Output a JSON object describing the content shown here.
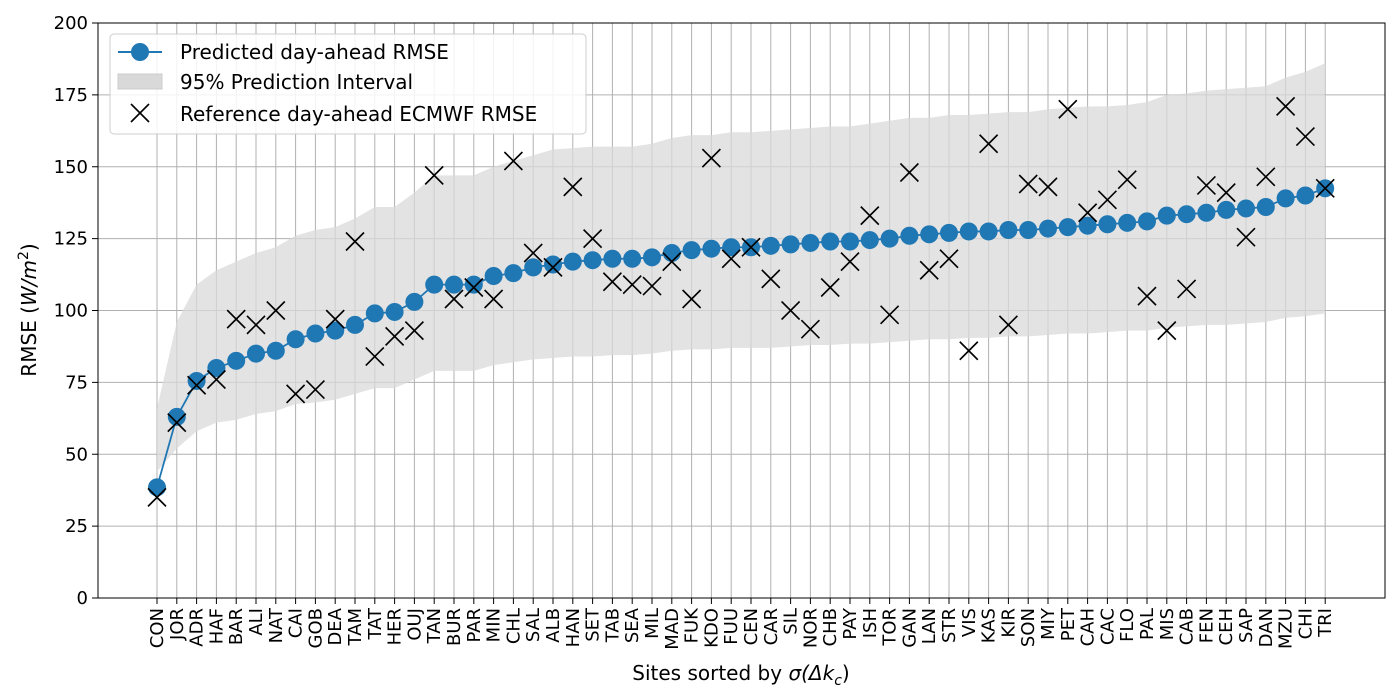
{
  "chart_data": {
    "type": "line",
    "title": "",
    "xlabel_main": "Sites sorted by ",
    "xlabel_symbol": "σ(Δk",
    "xlabel_sub": "c",
    "xlabel_close": ")",
    "ylabel_main": "RMSE (",
    "ylabel_unit": "W/m",
    "ylabel_sup": "2",
    "ylabel_close": ")",
    "ylim": [
      0,
      200
    ],
    "yticks": [
      0,
      25,
      50,
      75,
      100,
      125,
      150,
      175,
      200
    ],
    "grid": true,
    "legend_position": "top-left",
    "categories": [
      "CON",
      "JOR",
      "ADR",
      "HAF",
      "BAR",
      "ALI",
      "NAT",
      "CAI",
      "GOB",
      "DEA",
      "TAM",
      "TAT",
      "HER",
      "OUJ",
      "TAN",
      "BUR",
      "PAR",
      "MIN",
      "CHL",
      "SAL",
      "ALB",
      "HAN",
      "SET",
      "TAB",
      "SEA",
      "MIL",
      "MAD",
      "FUK",
      "KDO",
      "FUU",
      "CEN",
      "CAR",
      "SIL",
      "NOR",
      "CHB",
      "PAY",
      "ISH",
      "TOR",
      "GAN",
      "LAN",
      "STR",
      "VIS",
      "KAS",
      "KIR",
      "SON",
      "MIY",
      "PET",
      "CAH",
      "CAC",
      "FLO",
      "PAL",
      "MIS",
      "CAB",
      "FEN",
      "CEH",
      "SAP",
      "DAN",
      "MZU",
      "CHI",
      "TRI"
    ],
    "series": [
      {
        "name": "Predicted day-ahead RMSE",
        "kind": "line-marker",
        "color": "#1f77b4",
        "values": [
          38.5,
          63,
          75.5,
          80,
          82.5,
          85,
          86,
          90,
          92,
          93,
          95,
          99,
          99.5,
          103,
          109,
          109,
          109,
          112,
          113,
          115,
          116,
          117,
          117.5,
          118,
          118,
          118.5,
          120,
          121,
          121.5,
          122,
          122,
          122.5,
          123,
          123.5,
          124,
          124,
          124.5,
          125,
          126,
          126.5,
          127,
          127.5,
          127.5,
          128,
          128,
          128.5,
          129,
          129.5,
          130,
          130.5,
          131,
          133,
          133.5,
          134,
          135,
          135.5,
          136,
          139,
          140,
          142.5
        ]
      },
      {
        "name": "95% Prediction Interval",
        "kind": "band",
        "color": "#d9d9d9",
        "lower": [
          44,
          52,
          58,
          61,
          62,
          64,
          65,
          67.5,
          68,
          69,
          71,
          73,
          73,
          76,
          79,
          79,
          79,
          81,
          82,
          83,
          83.5,
          84,
          84,
          84.5,
          84.5,
          85,
          86,
          86.5,
          86.5,
          87,
          87,
          87,
          87.5,
          88,
          88,
          88.5,
          88.5,
          89,
          89.5,
          90,
          90,
          90.5,
          90.5,
          91,
          91,
          91.5,
          92,
          92,
          92.5,
          93,
          93,
          94,
          94.5,
          95,
          95,
          95.5,
          96,
          97.5,
          98,
          99
        ],
        "upper": [
          66,
          96,
          109,
          114,
          117,
          120,
          122,
          126,
          128,
          129,
          132,
          136,
          136,
          141,
          147,
          147,
          147,
          150,
          152,
          154,
          156,
          156.5,
          157,
          157,
          157,
          158,
          160,
          161,
          161,
          162,
          162,
          162.5,
          163,
          163.5,
          164,
          164,
          165,
          166,
          167,
          167,
          168,
          168,
          168.5,
          169,
          169,
          170,
          170.5,
          171,
          171,
          171.5,
          172.5,
          175,
          175.5,
          176.5,
          177,
          177.5,
          178,
          181,
          183,
          186
        ]
      },
      {
        "name": "Reference day-ahead ECMWF RMSE",
        "kind": "scatter-x",
        "color": "#000000",
        "values": [
          35,
          61,
          74,
          76,
          97,
          95,
          100,
          71,
          72.5,
          97,
          124,
          84,
          91,
          93,
          147,
          104,
          108,
          104,
          152,
          120,
          115,
          143,
          125,
          110,
          109,
          108.5,
          117,
          104,
          153,
          118,
          122,
          111,
          100,
          93.5,
          108,
          117,
          133,
          98.5,
          148,
          114,
          118,
          86,
          158,
          95,
          144,
          143,
          170,
          134,
          138.5,
          145.5,
          105,
          93,
          107.5,
          143.5,
          141,
          125.5,
          146.5,
          171,
          160.5,
          142.5
        ]
      }
    ]
  }
}
